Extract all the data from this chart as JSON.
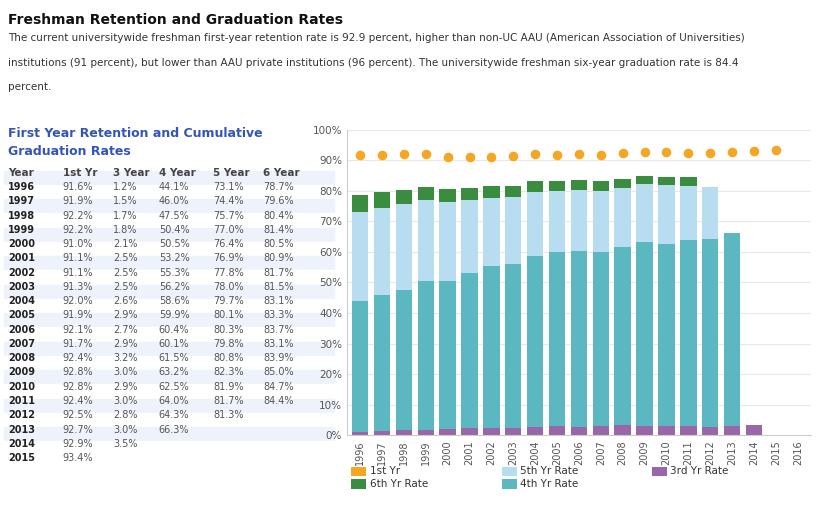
{
  "years": [
    1996,
    1997,
    1998,
    1999,
    2000,
    2001,
    2002,
    2003,
    2004,
    2005,
    2006,
    2007,
    2008,
    2009,
    2010,
    2011,
    2012,
    2013,
    2014,
    2015,
    2016
  ],
  "first_yr": [
    91.6,
    91.9,
    92.2,
    92.2,
    91.0,
    91.1,
    91.1,
    91.3,
    92.0,
    91.9,
    92.1,
    91.7,
    92.4,
    92.8,
    92.8,
    92.4,
    92.5,
    92.7,
    92.9,
    93.4,
    null
  ],
  "yr3": [
    1.2,
    1.5,
    1.7,
    1.8,
    2.1,
    2.5,
    2.5,
    2.5,
    2.6,
    2.9,
    2.7,
    2.9,
    3.2,
    3.0,
    2.9,
    3.0,
    2.8,
    3.0,
    3.5,
    null,
    null
  ],
  "yr4": [
    44.1,
    46.0,
    47.5,
    50.4,
    50.5,
    53.2,
    55.3,
    56.2,
    58.6,
    59.9,
    60.4,
    60.1,
    61.5,
    63.2,
    62.5,
    64.0,
    64.3,
    66.3,
    null,
    null,
    null
  ],
  "yr5": [
    73.1,
    74.4,
    75.7,
    77.0,
    76.4,
    76.9,
    77.8,
    78.0,
    79.7,
    80.1,
    80.3,
    79.8,
    80.8,
    82.3,
    81.9,
    81.7,
    81.3,
    null,
    null,
    null,
    null
  ],
  "yr6": [
    78.7,
    79.6,
    80.4,
    81.4,
    80.5,
    80.9,
    81.7,
    81.5,
    83.1,
    83.3,
    83.7,
    83.1,
    83.9,
    85.0,
    84.7,
    84.4,
    null,
    null,
    null,
    null,
    null
  ],
  "color_4yr": "#5BB8C0",
  "color_5yr": "#B8DCF0",
  "color_6yr": "#3A8C3F",
  "color_3yr": "#9966AA",
  "color_1yr_dot": "#F5A623",
  "bg_color": "#FFFFFF",
  "grid_color": "#E8E8E8",
  "title": "Freshman Retention and Graduation Rates",
  "subtitle_lines": [
    "The current universitywide freshman first-year retention rate is 92.9 percent, higher than non-UC AAU (American Association of Universities)",
    "institutions (91 percent), but lower than AAU private institutions (96 percent). The universitywide freshman six-year graduation rate is 84.4",
    "percent."
  ],
  "section_title_line1": "First Year Retention and Cumulative",
  "section_title_line2": "Graduation Rates",
  "table_headers": [
    "Year",
    "1st Yr",
    "3 Year",
    "4 Year",
    "5 Year",
    "6 Year"
  ],
  "table_rows": [
    [
      "1996",
      "91.6%",
      "1.2%",
      "44.1%",
      "73.1%",
      "78.7%"
    ],
    [
      "1997",
      "91.9%",
      "1.5%",
      "46.0%",
      "74.4%",
      "79.6%"
    ],
    [
      "1998",
      "92.2%",
      "1.7%",
      "47.5%",
      "75.7%",
      "80.4%"
    ],
    [
      "1999",
      "92.2%",
      "1.8%",
      "50.4%",
      "77.0%",
      "81.4%"
    ],
    [
      "2000",
      "91.0%",
      "2.1%",
      "50.5%",
      "76.4%",
      "80.5%"
    ],
    [
      "2001",
      "91.1%",
      "2.5%",
      "53.2%",
      "76.9%",
      "80.9%"
    ],
    [
      "2002",
      "91.1%",
      "2.5%",
      "55.3%",
      "77.8%",
      "81.7%"
    ],
    [
      "2003",
      "91.3%",
      "2.5%",
      "56.2%",
      "78.0%",
      "81.5%"
    ],
    [
      "2004",
      "92.0%",
      "2.6%",
      "58.6%",
      "79.7%",
      "83.1%"
    ],
    [
      "2005",
      "91.9%",
      "2.9%",
      "59.9%",
      "80.1%",
      "83.3%"
    ],
    [
      "2006",
      "92.1%",
      "2.7%",
      "60.4%",
      "80.3%",
      "83.7%"
    ],
    [
      "2007",
      "91.7%",
      "2.9%",
      "60.1%",
      "79.8%",
      "83.1%"
    ],
    [
      "2008",
      "92.4%",
      "3.2%",
      "61.5%",
      "80.8%",
      "83.9%"
    ],
    [
      "2009",
      "92.8%",
      "3.0%",
      "63.2%",
      "82.3%",
      "85.0%"
    ],
    [
      "2010",
      "92.8%",
      "2.9%",
      "62.5%",
      "81.9%",
      "84.7%"
    ],
    [
      "2011",
      "92.4%",
      "3.0%",
      "64.0%",
      "81.7%",
      "84.4%"
    ],
    [
      "2012",
      "92.5%",
      "2.8%",
      "64.3%",
      "81.3%",
      ""
    ],
    [
      "2013",
      "92.7%",
      "3.0%",
      "66.3%",
      "",
      ""
    ],
    [
      "2014",
      "92.9%",
      "3.5%",
      "",
      "",
      ""
    ],
    [
      "2015",
      "93.4%",
      "",
      "",
      "",
      ""
    ]
  ],
  "legend_items": [
    {
      "label": "1st Yr",
      "color": "#F5A623"
    },
    {
      "label": "5th Yr Rate",
      "color": "#B8DCF0"
    },
    {
      "label": "3rd Yr Rate",
      "color": "#9966AA"
    },
    {
      "label": "6th Yr Rate",
      "color": "#3A8C3F"
    },
    {
      "label": "4th Yr Rate",
      "color": "#5BB8C0"
    }
  ],
  "ylim": [
    0,
    100
  ],
  "yticks": [
    0,
    10,
    20,
    30,
    40,
    50,
    60,
    70,
    80,
    90,
    100
  ]
}
